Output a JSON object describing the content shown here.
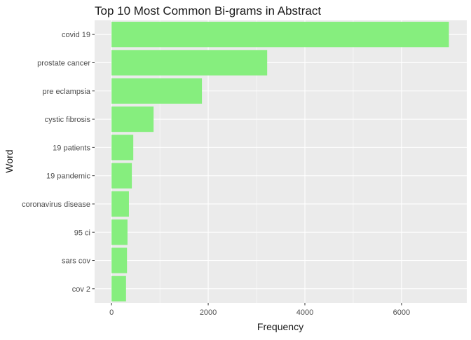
{
  "chart_data": {
    "type": "bar",
    "orientation": "horizontal",
    "title": "Top 10 Most Common Bi-grams in Abstract",
    "xlabel": "Frequency",
    "ylabel": "Word",
    "categories": [
      "covid 19",
      "prostate cancer",
      "pre eclampsia",
      "cystic fibrosis",
      "19 patients",
      "19 pandemic",
      "coronavirus disease",
      "95 ci",
      "sars cov",
      "cov 2"
    ],
    "values": [
      6980,
      3220,
      1870,
      870,
      450,
      420,
      360,
      330,
      320,
      300
    ],
    "xlim": [
      -350,
      7350
    ],
    "x_ticks": [
      0,
      2000,
      4000,
      6000
    ],
    "x_tick_labels": [
      "0",
      "2000",
      "4000",
      "6000"
    ],
    "grid": true,
    "legend": "none",
    "colors": {
      "bar": "#86EE7E",
      "panel": "#EBEBEB",
      "grid_major": "#FFFFFF",
      "text": "#1A1A1A",
      "tick_text": "#4D4D4D"
    }
  }
}
